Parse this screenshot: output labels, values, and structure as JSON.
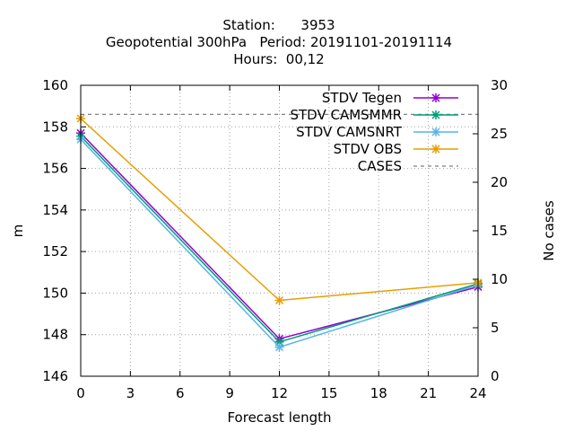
{
  "chart_data": {
    "type": "line",
    "title_lines": [
      "Station:      3953",
      "Geopotential 300hPa   Period: 20191101-20191114",
      "Hours:  00,12"
    ],
    "xlabel": "Forecast length",
    "ylabel": "m",
    "y2label": "No cases",
    "xlim": [
      0,
      24
    ],
    "ylim": [
      146,
      160
    ],
    "y2lim": [
      0,
      30
    ],
    "xticks": [
      0,
      3,
      6,
      9,
      12,
      15,
      18,
      21,
      24
    ],
    "yticks": [
      146,
      148,
      150,
      152,
      154,
      156,
      158,
      160
    ],
    "y2ticks": [
      0,
      5,
      10,
      15,
      20,
      25,
      30
    ],
    "grid": true,
    "legend_position": "top-right",
    "x": [
      0,
      12,
      24
    ],
    "series": [
      {
        "name": "STDV Tegen",
        "color": "#9400d3",
        "marker": "x",
        "axis": "y",
        "values": [
          157.7,
          147.8,
          150.3
        ]
      },
      {
        "name": "STDV CAMSMMR",
        "color": "#009e73",
        "marker": "x",
        "axis": "y",
        "values": [
          157.55,
          147.65,
          150.45
        ]
      },
      {
        "name": "STDV CAMSNRT",
        "color": "#56b4e9",
        "marker": "x",
        "axis": "y",
        "values": [
          157.4,
          147.4,
          150.4
        ]
      },
      {
        "name": "STDV OBS",
        "color": "#e69f00",
        "marker": "x",
        "axis": "y",
        "values": [
          158.4,
          149.65,
          150.5
        ]
      },
      {
        "name": "CASES",
        "color": "#808080",
        "marker": "none",
        "dash": true,
        "axis": "y2",
        "values": [
          27,
          27,
          27
        ]
      }
    ]
  }
}
